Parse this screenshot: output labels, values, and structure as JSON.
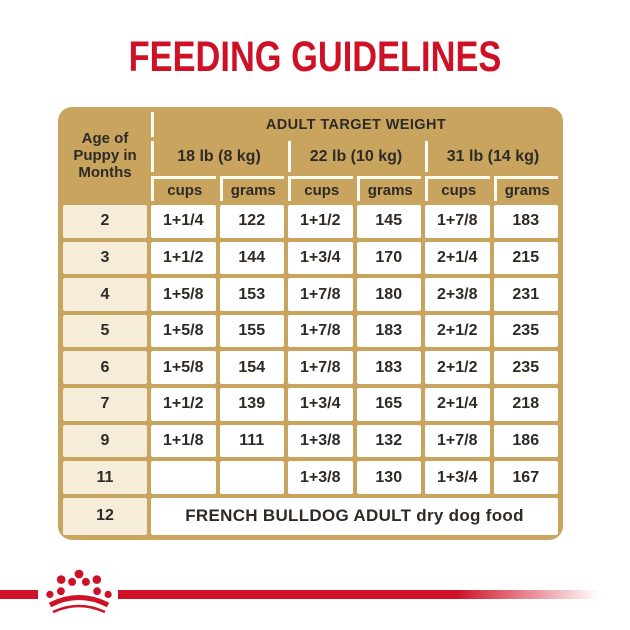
{
  "title": "FEEDING GUIDELINES",
  "table": {
    "age_header": "Age of\nPuppy in\nMonths",
    "target_weight_header": "ADULT TARGET WEIGHT",
    "weight_groups": [
      "18 lb (8 kg)",
      "22 lb (10 kg)",
      "31 lb (14 kg)"
    ],
    "sub_headers": [
      "cups",
      "grams",
      "cups",
      "grams",
      "cups",
      "grams"
    ],
    "rows": [
      {
        "age": "2",
        "values": [
          "1+1/4",
          "122",
          "1+1/2",
          "145",
          "1+7/8",
          "183"
        ]
      },
      {
        "age": "3",
        "values": [
          "1+1/2",
          "144",
          "1+3/4",
          "170",
          "2+1/4",
          "215"
        ]
      },
      {
        "age": "4",
        "values": [
          "1+5/8",
          "153",
          "1+7/8",
          "180",
          "2+3/8",
          "231"
        ]
      },
      {
        "age": "5",
        "values": [
          "1+5/8",
          "155",
          "1+7/8",
          "183",
          "2+1/2",
          "235"
        ]
      },
      {
        "age": "6",
        "values": [
          "1+5/8",
          "154",
          "1+7/8",
          "183",
          "2+1/2",
          "235"
        ]
      },
      {
        "age": "7",
        "values": [
          "1+1/2",
          "139",
          "1+3/4",
          "165",
          "2+1/4",
          "218"
        ]
      },
      {
        "age": "9",
        "values": [
          "1+1/8",
          "111",
          "1+3/8",
          "132",
          "1+7/8",
          "186"
        ]
      },
      {
        "age": "11",
        "values": [
          "",
          "",
          "1+3/8",
          "130",
          "1+3/4",
          "167"
        ]
      }
    ],
    "footer_row": {
      "age": "12",
      "label": "FRENCH BULLDOG ADULT dry dog food"
    }
  },
  "brand": {
    "crown_icon": "royal-canin-crown"
  },
  "colors": {
    "accent_red": "#CE1126",
    "table_tan": "#C9A45E",
    "age_column_cream": "#F5EDDA",
    "header_line_white": "#FFFDF2",
    "text_dark": "#2E2A26"
  }
}
